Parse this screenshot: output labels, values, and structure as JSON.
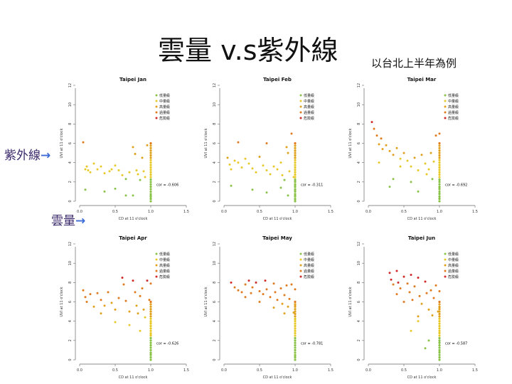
{
  "slide": {
    "title": "雲量 v.s紫外線",
    "subtitle": "以台北上半年為例",
    "label_uv": "紫外線",
    "label_cloud": "雲量",
    "arrow": "→"
  },
  "legend_labels": [
    "低量級",
    "中量級",
    "高量級",
    "過量級",
    "危險級"
  ],
  "colors": {
    "low": "#8bc34a",
    "moderate": "#e8c92a",
    "high": "#e0a21e",
    "very_high": "#e07a1e",
    "extreme": "#d02a2a"
  },
  "chart_data": [
    {
      "type": "scatter",
      "title": "Taipei Jan",
      "xlabel": "CD at 11 o'clock",
      "ylabel": "UVI at 11 o'clock",
      "xlim": [
        0,
        1.5
      ],
      "ylim": [
        0,
        12
      ],
      "xticks": [
        "0.0",
        "0.5",
        "1.0",
        "1.5"
      ],
      "yticks": [
        "0",
        "2",
        "4",
        "6",
        "8",
        "10",
        "12"
      ],
      "annotation": "cor = -0.606",
      "points": [
        [
          0.05,
          6.1
        ],
        [
          0.08,
          3.3
        ],
        [
          0.1,
          3.6
        ],
        [
          0.12,
          3.2
        ],
        [
          0.15,
          3.0
        ],
        [
          0.2,
          3.9
        ],
        [
          0.25,
          3.3
        ],
        [
          0.3,
          3.6
        ],
        [
          0.35,
          2.9
        ],
        [
          0.42,
          3.1
        ],
        [
          0.45,
          3.3
        ],
        [
          0.5,
          3.7
        ],
        [
          0.55,
          3.2
        ],
        [
          0.6,
          2.7
        ],
        [
          0.65,
          2.3
        ],
        [
          0.7,
          3.0
        ],
        [
          0.75,
          5.6
        ],
        [
          0.78,
          4.9
        ],
        [
          0.8,
          3.2
        ],
        [
          0.82,
          2.8
        ],
        [
          0.85,
          2.2
        ],
        [
          0.88,
          4.5
        ],
        [
          0.9,
          3.1
        ],
        [
          0.92,
          2.5
        ],
        [
          0.95,
          5.8
        ],
        [
          1.0,
          6.0
        ],
        [
          1.0,
          2.0
        ],
        [
          1.0,
          1.5
        ],
        [
          1.0,
          1.0
        ],
        [
          1.0,
          0.6
        ],
        [
          1.0,
          0.3
        ],
        [
          1.0,
          2.5
        ],
        [
          0.5,
          1.3
        ],
        [
          0.65,
          0.6
        ],
        [
          0.75,
          0.6
        ],
        [
          0.08,
          1.2
        ],
        [
          0.35,
          1.0
        ]
      ]
    },
    {
      "type": "scatter",
      "title": "Taipei Feb",
      "xlabel": "CD at 11 o'clock",
      "ylabel": "UVI at 11 o'clock",
      "xlim": [
        0,
        1.5
      ],
      "ylim": [
        0,
        12
      ],
      "xticks": [
        "0.0",
        "0.5",
        "1.0",
        "1.5"
      ],
      "yticks": [
        "0",
        "2",
        "4",
        "6",
        "8",
        "10",
        "12"
      ],
      "annotation": "cor = -0.311",
      "points": [
        [
          0.05,
          4.5
        ],
        [
          0.08,
          3.8
        ],
        [
          0.1,
          3.3
        ],
        [
          0.15,
          4.2
        ],
        [
          0.2,
          4.0
        ],
        [
          0.25,
          3.5
        ],
        [
          0.3,
          4.4
        ],
        [
          0.35,
          3.9
        ],
        [
          0.4,
          3.4
        ],
        [
          0.45,
          3.0
        ],
        [
          0.5,
          4.6
        ],
        [
          0.55,
          3.7
        ],
        [
          0.6,
          3.2
        ],
        [
          0.65,
          2.8
        ],
        [
          0.7,
          3.6
        ],
        [
          0.75,
          3.3
        ],
        [
          0.8,
          4.0
        ],
        [
          0.82,
          2.7
        ],
        [
          0.85,
          2.2
        ],
        [
          0.88,
          5.6
        ],
        [
          0.9,
          5.0
        ],
        [
          0.92,
          3.1
        ],
        [
          0.95,
          7.0
        ],
        [
          0.98,
          2.5
        ],
        [
          1.0,
          2.1
        ],
        [
          1.0,
          1.6
        ],
        [
          1.0,
          1.1
        ],
        [
          1.0,
          0.6
        ],
        [
          1.0,
          0.2
        ],
        [
          0.1,
          1.6
        ],
        [
          0.4,
          1.2
        ],
        [
          0.6,
          0.9
        ],
        [
          0.8,
          1.4
        ],
        [
          0.9,
          0.6
        ],
        [
          0.2,
          6.1
        ],
        [
          0.6,
          6.0
        ]
      ]
    },
    {
      "type": "scatter",
      "title": "Taipei Mar",
      "xlabel": "CD at 11 o'clock",
      "ylabel": "UVI at 11 o'clock",
      "xlim": [
        0,
        1.5
      ],
      "ylim": [
        0,
        12
      ],
      "xticks": [
        "0.0",
        "0.5",
        "1.0",
        "1.5"
      ],
      "yticks": [
        "0",
        "2",
        "4",
        "6",
        "8",
        "10",
        "12"
      ],
      "annotation": "cor = -0.692",
      "points": [
        [
          0.05,
          8.2
        ],
        [
          0.08,
          7.5
        ],
        [
          0.12,
          6.8
        ],
        [
          0.15,
          5.9
        ],
        [
          0.18,
          6.5
        ],
        [
          0.2,
          5.4
        ],
        [
          0.25,
          5.8
        ],
        [
          0.3,
          5.2
        ],
        [
          0.35,
          4.8
        ],
        [
          0.4,
          5.5
        ],
        [
          0.45,
          4.4
        ],
        [
          0.5,
          5.0
        ],
        [
          0.55,
          4.2
        ],
        [
          0.6,
          3.6
        ],
        [
          0.65,
          4.5
        ],
        [
          0.7,
          3.2
        ],
        [
          0.75,
          4.8
        ],
        [
          0.8,
          3.9
        ],
        [
          0.82,
          2.8
        ],
        [
          0.85,
          3.3
        ],
        [
          0.88,
          5.0
        ],
        [
          0.9,
          2.3
        ],
        [
          0.92,
          4.1
        ],
        [
          0.95,
          6.8
        ],
        [
          1.0,
          7.0
        ],
        [
          1.0,
          3.0
        ],
        [
          1.0,
          2.2
        ],
        [
          1.0,
          1.4
        ],
        [
          1.0,
          0.8
        ],
        [
          1.0,
          0.3
        ],
        [
          0.3,
          1.5
        ],
        [
          0.6,
          2.0
        ],
        [
          0.15,
          4.0
        ],
        [
          0.45,
          3.6
        ],
        [
          0.7,
          1.0
        ],
        [
          0.35,
          2.3
        ]
      ]
    },
    {
      "type": "scatter",
      "title": "Taipei Apr",
      "xlabel": "CD at 11 o'clock",
      "ylabel": "UVI at 11 o'clock",
      "xlim": [
        0,
        1.5
      ],
      "ylim": [
        0,
        12
      ],
      "xticks": [
        "0.0",
        "0.5",
        "1.0",
        "1.5"
      ],
      "yticks": [
        "0",
        "2",
        "4",
        "6",
        "8",
        "10",
        "12"
      ],
      "annotation": "cor = -0.626",
      "points": [
        [
          0.05,
          7.2
        ],
        [
          0.08,
          6.5
        ],
        [
          0.1,
          6.0
        ],
        [
          0.15,
          6.8
        ],
        [
          0.2,
          5.5
        ],
        [
          0.25,
          6.9
        ],
        [
          0.3,
          6.2
        ],
        [
          0.35,
          5.6
        ],
        [
          0.4,
          7.0
        ],
        [
          0.45,
          5.9
        ],
        [
          0.5,
          5.2
        ],
        [
          0.55,
          6.4
        ],
        [
          0.6,
          8.5
        ],
        [
          0.62,
          7.8
        ],
        [
          0.65,
          6.1
        ],
        [
          0.7,
          5.0
        ],
        [
          0.75,
          8.2
        ],
        [
          0.78,
          7.0
        ],
        [
          0.8,
          5.6
        ],
        [
          0.82,
          4.8
        ],
        [
          0.85,
          6.6
        ],
        [
          0.88,
          7.4
        ],
        [
          0.9,
          5.2
        ],
        [
          0.92,
          4.4
        ],
        [
          0.95,
          8.2
        ],
        [
          0.98,
          6.2
        ],
        [
          1.0,
          7.9
        ],
        [
          1.0,
          5.0
        ],
        [
          1.0,
          3.8
        ],
        [
          1.0,
          2.6
        ],
        [
          1.0,
          1.5
        ],
        [
          1.0,
          0.6
        ],
        [
          0.3,
          4.8
        ],
        [
          0.5,
          3.9
        ],
        [
          0.7,
          3.6
        ],
        [
          0.85,
          3.0
        ]
      ]
    },
    {
      "type": "scatter",
      "title": "Taipei May",
      "xlabel": "CD at 11 o'clock",
      "ylabel": "UVI at 11 o'clock",
      "xlim": [
        0,
        1.5
      ],
      "ylim": [
        0,
        12
      ],
      "xticks": [
        "0.0",
        "0.5",
        "1.0",
        "1.5"
      ],
      "yticks": [
        "0",
        "2",
        "4",
        "6",
        "8",
        "10",
        "12"
      ],
      "annotation": "cor = -0.781",
      "points": [
        [
          0.1,
          8.0
        ],
        [
          0.15,
          7.5
        ],
        [
          0.2,
          7.2
        ],
        [
          0.25,
          7.0
        ],
        [
          0.3,
          7.8
        ],
        [
          0.35,
          8.2
        ],
        [
          0.38,
          6.9
        ],
        [
          0.4,
          7.5
        ],
        [
          0.45,
          8.0
        ],
        [
          0.5,
          7.1
        ],
        [
          0.55,
          6.8
        ],
        [
          0.58,
          8.2
        ],
        [
          0.6,
          7.3
        ],
        [
          0.65,
          6.5
        ],
        [
          0.7,
          7.9
        ],
        [
          0.72,
          7.0
        ],
        [
          0.75,
          6.2
        ],
        [
          0.8,
          7.4
        ],
        [
          0.82,
          5.8
        ],
        [
          0.85,
          6.7
        ],
        [
          0.88,
          7.7
        ],
        [
          0.9,
          5.5
        ],
        [
          0.92,
          6.3
        ],
        [
          0.95,
          7.8
        ],
        [
          0.98,
          4.9
        ],
        [
          1.0,
          7.3
        ],
        [
          1.0,
          5.6
        ],
        [
          1.0,
          4.2
        ],
        [
          1.0,
          3.0
        ],
        [
          1.0,
          2.0
        ],
        [
          1.0,
          1.0
        ],
        [
          1.0,
          0.4
        ],
        [
          0.3,
          6.5
        ],
        [
          0.5,
          6.0
        ],
        [
          0.7,
          5.4
        ],
        [
          0.85,
          4.8
        ]
      ]
    },
    {
      "type": "scatter",
      "title": "Taipei Jun",
      "xlabel": "CD at 11 o'clock",
      "ylabel": "UVI at 11 o'clock",
      "xlim": [
        0,
        1.5
      ],
      "ylim": [
        0,
        12
      ],
      "xticks": [
        "0.0",
        "0.5",
        "1.0",
        "1.5"
      ],
      "yticks": [
        "0",
        "2",
        "4",
        "6",
        "8",
        "10",
        "12"
      ],
      "annotation": "cor = -0.587",
      "points": [
        [
          0.3,
          9.0
        ],
        [
          0.32,
          8.3
        ],
        [
          0.35,
          7.8
        ],
        [
          0.4,
          9.2
        ],
        [
          0.42,
          8.0
        ],
        [
          0.45,
          7.4
        ],
        [
          0.5,
          8.6
        ],
        [
          0.55,
          7.9
        ],
        [
          0.58,
          7.0
        ],
        [
          0.6,
          8.8
        ],
        [
          0.62,
          6.2
        ],
        [
          0.65,
          7.6
        ],
        [
          0.7,
          8.5
        ],
        [
          0.72,
          6.6
        ],
        [
          0.75,
          5.8
        ],
        [
          0.8,
          8.1
        ],
        [
          0.82,
          6.9
        ],
        [
          0.85,
          5.2
        ],
        [
          0.88,
          7.2
        ],
        [
          0.9,
          4.6
        ],
        [
          0.92,
          6.4
        ],
        [
          0.95,
          7.7
        ],
        [
          0.98,
          5.0
        ],
        [
          1.0,
          7.1
        ],
        [
          1.0,
          5.4
        ],
        [
          1.0,
          4.0
        ],
        [
          1.0,
          2.8
        ],
        [
          1.0,
          1.8
        ],
        [
          1.0,
          0.8
        ],
        [
          0.5,
          6.0
        ],
        [
          0.6,
          3.0
        ],
        [
          0.7,
          4.5
        ],
        [
          0.85,
          2.0
        ],
        [
          0.8,
          1.2
        ],
        [
          0.7,
          4.0
        ],
        [
          0.4,
          6.8
        ]
      ]
    }
  ]
}
